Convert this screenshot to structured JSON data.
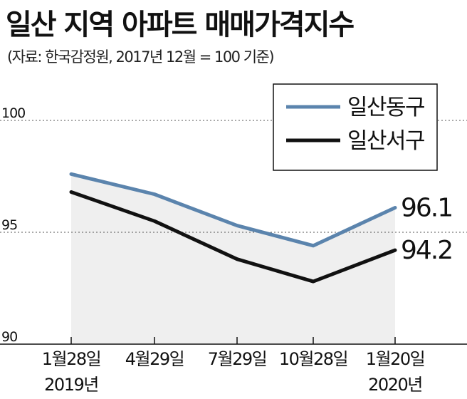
{
  "header": {
    "title": "일산 지역 아파트 매매가격지수",
    "subtitle": "(자료: 한국감정원, 2017년 12월 = 100 기준)"
  },
  "chart_data": {
    "type": "line",
    "categories": [
      "1월28일",
      "4월29일",
      "7월29일",
      "10월28일",
      "1월20일"
    ],
    "year_labels": [
      "2019년",
      "",
      "",
      "",
      "2020년"
    ],
    "ylim": [
      90,
      100
    ],
    "yticks": [
      90,
      95,
      100
    ],
    "grid": "dotted horizontal at 95 and 100",
    "legend_position": "top-right",
    "area_fill": "#efefef",
    "series": [
      {
        "name": "일산동구",
        "color": "#5b84ad",
        "values": [
          97.6,
          96.7,
          95.3,
          94.4,
          96.1
        ],
        "end_label": "96.1"
      },
      {
        "name": "일산서구",
        "color": "#111111",
        "values": [
          96.8,
          95.5,
          93.8,
          92.8,
          94.2
        ],
        "end_label": "94.2"
      }
    ]
  }
}
